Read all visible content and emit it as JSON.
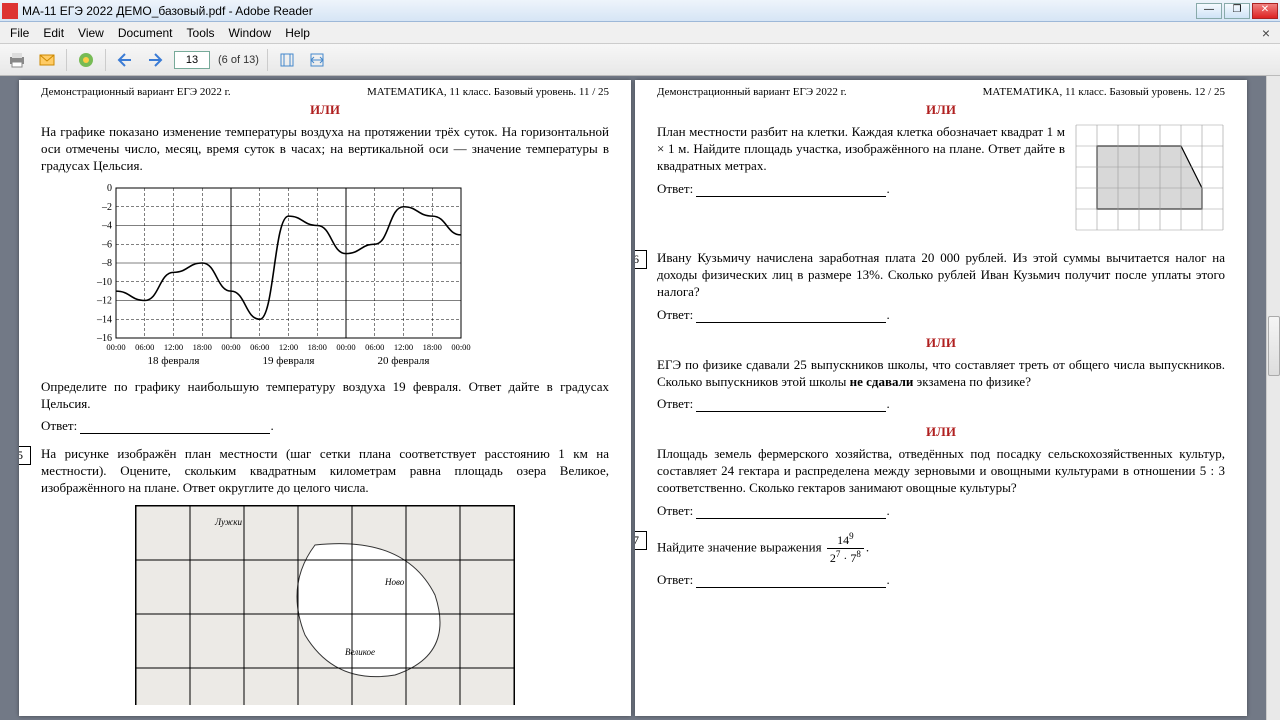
{
  "window": {
    "title": "МА-11 ЕГЭ 2022 ДЕМО_базовый.pdf - Adobe Reader"
  },
  "menu": [
    "File",
    "Edit",
    "View",
    "Document",
    "Tools",
    "Window",
    "Help"
  ],
  "toolbar": {
    "page": "13",
    "total": "(6 of 13)"
  },
  "pL": {
    "hdrL": "Демонстрационный вариант ЕГЭ 2022 г.",
    "hdrR": "МАТЕМАТИКА, 11 класс. Базовый уровень. 11 / 25",
    "ili": "ИЛИ",
    "p1": "На графике показано изменение температуры воздуха на протяжении трёх суток. На горизонтальной оси отмечены число, месяц, время суток в часах; на вертикальной оси — значение температуры в градусах Цельсия.",
    "p2": "Определите по графику наибольшую температуру воздуха 19 февраля. Ответ дайте в градусах Цельсия.",
    "ans": "Ответ:",
    "q5n": "5",
    "q5": "На рисунке изображён план местности (шаг сетки плана соответствует расстоянию 1 км на местности). Оцените, скольким квадратным километрам равна площадь озера Великое, изображённого на плане. Ответ округлите до целого числа.",
    "chart": {
      "ylabels": [
        "0",
        "–2",
        "–4",
        "–6",
        "–8",
        "–10",
        "–12",
        "–14",
        "–16"
      ],
      "xtimes": [
        "00:00",
        "06:00",
        "12:00",
        "18:00",
        "00:00",
        "06:00",
        "12:00",
        "18:00",
        "00:00",
        "06:00",
        "12:00",
        "18:00",
        "00:00"
      ],
      "xdates": [
        "18 февраля",
        "19 февраля",
        "20 февраля"
      ],
      "points": [
        [
          0,
          -11
        ],
        [
          1,
          -12
        ],
        [
          2,
          -9
        ],
        [
          3,
          -8
        ],
        [
          4,
          -11
        ],
        [
          5,
          -14
        ],
        [
          6,
          -3
        ],
        [
          7,
          -4
        ],
        [
          8,
          -7
        ],
        [
          9,
          -6
        ],
        [
          10,
          -2
        ],
        [
          11,
          -3
        ],
        [
          12,
          -5
        ]
      ],
      "grid": "#000",
      "bg": "#fff"
    },
    "map": {
      "cols": 7,
      "rows": 4,
      "labels": [
        "Лужки",
        "Ново",
        "Великое"
      ]
    }
  },
  "pR": {
    "hdrL": "Демонстрационный вариант ЕГЭ 2022 г.",
    "hdrR": "МАТЕМАТИКА, 11 класс. Базовый уровень. 12 / 25",
    "ili": "ИЛИ",
    "pA": "План местности разбит на клетки. Каждая клетка обозначает квадрат 1 м × 1 м. Найдите площадь участка, изображённого на плане. Ответ дайте в квадратных метрах.",
    "ans": "Ответ:",
    "q6n": "6",
    "q6": "Ивану Кузьмичу начислена заработная плата 20 000 рублей. Из этой суммы вычитается налог на доходы физических лиц в размере 13%. Сколько рублей Иван Кузьмич получит после уплаты этого налога?",
    "pB1": "ЕГЭ по физике сдавали 25 выпускников школы, что составляет треть от общего числа выпускников. Сколько выпускников этой школы ",
    "pB1b": "не сдавали",
    "pB1c": " экзамена по физике?",
    "pC": "Площадь земель фермерского хозяйства, отведённых под посадку сельскохозяйственных культур, составляет 24 гектара и распределена между зерновыми и овощными культурами в отношении 5 : 3 соответственно. Сколько гектаров занимают овощные культуры?",
    "q7n": "7",
    "q7": "Найдите значение выражения",
    "frac": {
      "num": "14",
      "nump": "9",
      "den1": "2",
      "den1p": "7",
      "den2": "7",
      "den2p": "8"
    },
    "grid": {
      "cols": 7,
      "rows": 5,
      "fill": "#d8d8d8",
      "shape": [
        [
          1,
          1
        ],
        [
          5,
          1
        ],
        [
          6,
          3
        ],
        [
          6,
          4
        ],
        [
          1,
          4
        ]
      ]
    }
  }
}
